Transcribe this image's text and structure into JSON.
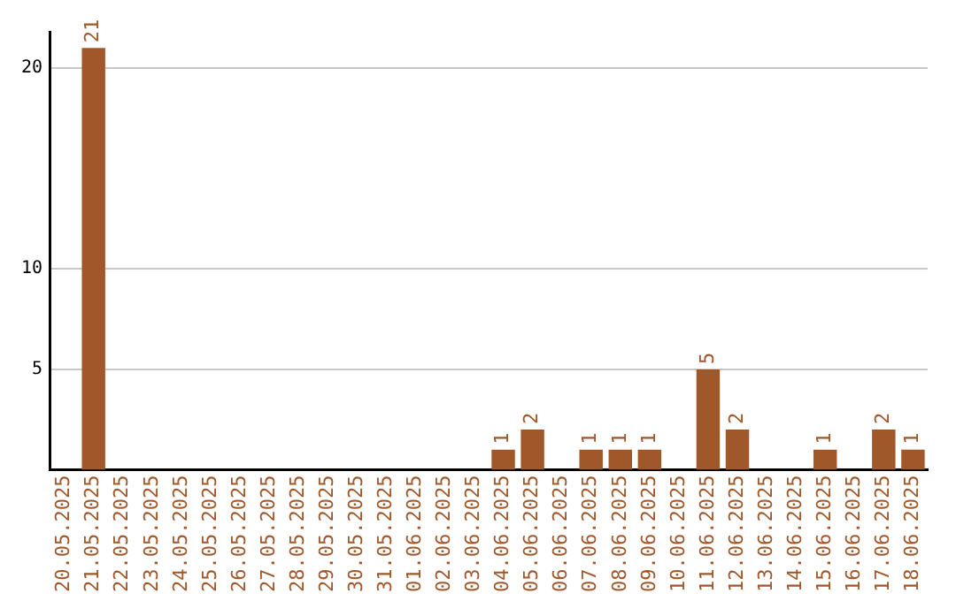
{
  "chart_data": {
    "type": "bar",
    "categories": [
      "20.05.2025",
      "21.05.2025",
      "22.05.2025",
      "23.05.2025",
      "24.05.2025",
      "25.05.2025",
      "26.05.2025",
      "27.05.2025",
      "28.05.2025",
      "29.05.2025",
      "30.05.2025",
      "31.05.2025",
      "01.06.2025",
      "02.06.2025",
      "03.06.2025",
      "04.06.2025",
      "05.06.2025",
      "06.06.2025",
      "07.06.2025",
      "08.06.2025",
      "09.06.2025",
      "10.06.2025",
      "11.06.2025",
      "12.06.2025",
      "13.06.2025",
      "14.06.2025",
      "15.06.2025",
      "16.06.2025",
      "17.06.2025",
      "18.06.2025"
    ],
    "values": [
      0,
      21,
      0,
      0,
      0,
      0,
      0,
      0,
      0,
      0,
      0,
      0,
      0,
      0,
      0,
      1,
      2,
      0,
      1,
      1,
      1,
      0,
      5,
      2,
      0,
      0,
      1,
      0,
      2,
      1
    ],
    "value_labels": [
      null,
      "21",
      null,
      null,
      null,
      null,
      null,
      null,
      null,
      null,
      null,
      null,
      null,
      null,
      null,
      "1",
      "2",
      null,
      "1",
      "1",
      "1",
      null,
      "5",
      "2",
      null,
      null,
      "1",
      null,
      "2",
      "1"
    ],
    "color": "#a0572a",
    "ylim": [
      0,
      21.8
    ],
    "yticks": [
      5,
      10,
      20
    ],
    "grid": "y",
    "legend": false
  }
}
